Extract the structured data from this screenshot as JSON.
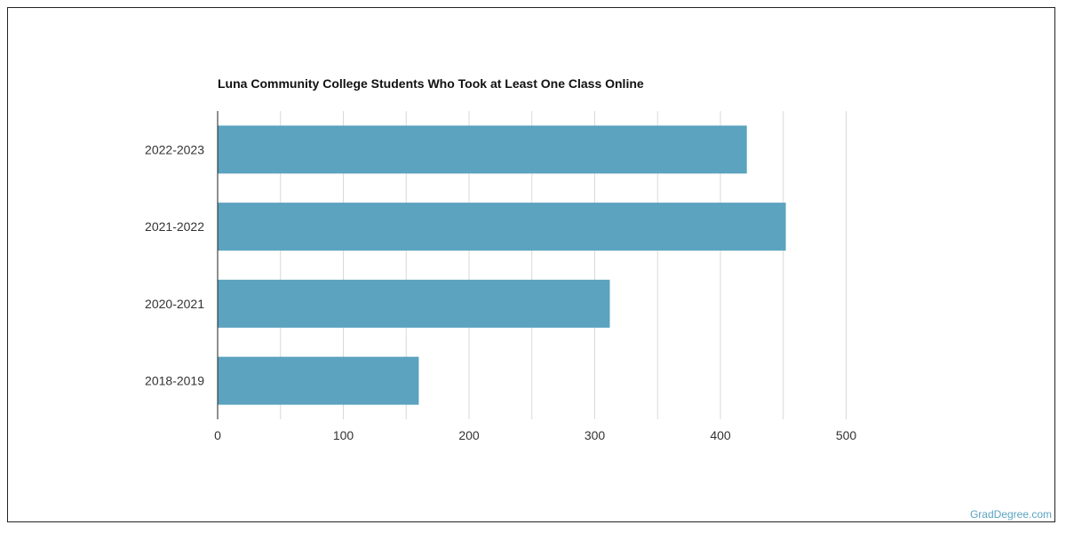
{
  "source": "GradDegree.com",
  "colors": {
    "bar": "#5ba3bf",
    "grid": "#d9d9d9",
    "axis": "#222222",
    "watermark": "#5ba3c0"
  },
  "chart_data": {
    "type": "bar",
    "orientation": "horizontal",
    "title": "Luna Community College Students Who Took at Least One Class Online",
    "categories": [
      "2022-2023",
      "2021-2022",
      "2020-2021",
      "2018-2019"
    ],
    "values": [
      421,
      452,
      312,
      160
    ],
    "xlim": [
      0,
      500
    ],
    "xticks": [
      0,
      100,
      200,
      300,
      400,
      500
    ],
    "xlabel": "",
    "ylabel": "",
    "grid": true
  }
}
